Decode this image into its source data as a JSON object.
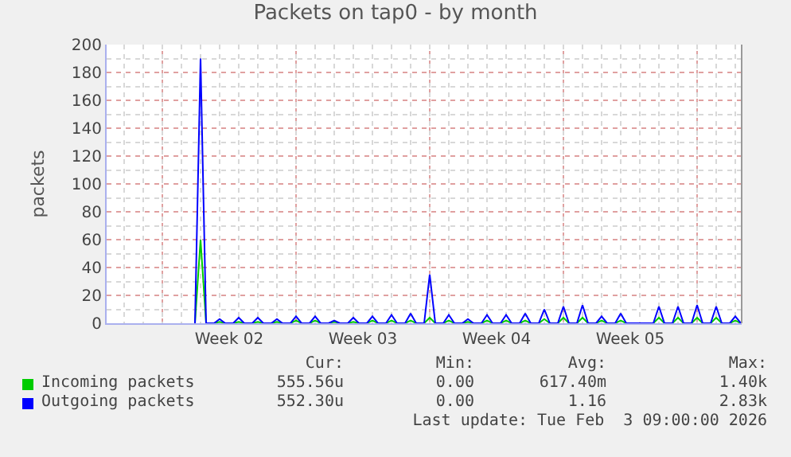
{
  "chart_data": {
    "type": "line",
    "title": "Packets on tap0 - by month",
    "ylabel": "packets",
    "x": [
      "2026-01-06T17:00",
      "2026-01-07T00:00",
      "2026-01-07T07:00",
      "2026-01-07T17:00",
      "2026-01-08T00:00",
      "2026-01-08T07:00",
      "2026-01-08T17:00",
      "2026-01-09T00:00",
      "2026-01-09T07:00",
      "2026-01-09T17:00",
      "2026-01-10T00:00",
      "2026-01-10T07:00",
      "2026-01-10T17:00",
      "2026-01-11T00:00",
      "2026-01-11T07:00",
      "2026-01-11T17:00",
      "2026-01-12T00:00",
      "2026-01-12T07:00",
      "2026-01-12T17:00",
      "2026-01-13T00:00",
      "2026-01-13T07:00",
      "2026-01-13T17:00",
      "2026-01-14T00:00",
      "2026-01-14T07:00",
      "2026-01-14T17:00",
      "2026-01-15T00:00",
      "2026-01-15T07:00",
      "2026-01-15T17:00",
      "2026-01-16T00:00",
      "2026-01-16T07:00",
      "2026-01-16T17:00",
      "2026-01-17T00:00",
      "2026-01-17T07:00",
      "2026-01-17T17:00",
      "2026-01-18T00:00",
      "2026-01-18T07:00",
      "2026-01-18T17:00",
      "2026-01-19T00:00",
      "2026-01-19T07:00",
      "2026-01-19T17:00",
      "2026-01-20T00:00",
      "2026-01-20T07:00",
      "2026-01-20T17:00",
      "2026-01-21T00:00",
      "2026-01-21T07:00",
      "2026-01-21T17:00",
      "2026-01-22T00:00",
      "2026-01-22T07:00",
      "2026-01-22T17:00",
      "2026-01-23T00:00",
      "2026-01-23T07:00",
      "2026-01-23T17:00",
      "2026-01-24T00:00",
      "2026-01-24T07:00",
      "2026-01-24T17:00",
      "2026-01-25T00:00",
      "2026-01-25T07:00",
      "2026-01-25T17:00",
      "2026-01-26T00:00",
      "2026-01-26T07:00",
      "2026-01-26T17:00",
      "2026-01-27T00:00",
      "2026-01-27T07:00",
      "2026-01-27T17:00",
      "2026-01-28T00:00",
      "2026-01-28T07:00",
      "2026-01-28T17:00",
      "2026-01-29T00:00",
      "2026-01-29T07:00",
      "2026-01-29T17:00",
      "2026-01-30T00:00",
      "2026-01-30T07:00",
      "2026-01-30T17:00",
      "2026-01-31T00:00",
      "2026-01-31T07:00",
      "2026-01-31T17:00",
      "2026-02-01T00:00",
      "2026-02-01T07:00",
      "2026-02-01T17:00",
      "2026-02-02T00:00",
      "2026-02-02T07:00",
      "2026-02-02T17:00",
      "2026-02-03T00:00",
      "2026-02-03T07:00",
      "2026-02-03T17:00",
      "2026-02-04T00:00",
      "2026-02-04T07:00"
    ],
    "series": [
      {
        "name": "Incoming packets",
        "color": "#00cc00",
        "values": [
          0,
          60,
          0,
          0,
          1,
          0,
          0,
          1,
          0,
          0,
          1,
          0,
          0,
          1,
          0,
          0,
          2,
          0,
          0,
          2,
          0,
          0,
          1,
          0,
          0,
          1,
          0,
          0,
          2,
          0,
          0,
          2,
          0,
          0,
          2,
          0,
          0,
          4,
          0,
          0,
          2,
          0,
          0,
          1,
          0,
          0,
          2,
          0,
          0,
          2,
          0,
          0,
          2,
          0,
          0,
          3,
          0,
          0,
          4,
          0,
          0,
          4,
          0,
          0,
          2,
          0,
          0,
          2,
          0,
          0,
          0,
          0,
          0,
          4,
          0,
          0,
          4,
          0,
          0,
          4,
          0,
          0,
          4,
          0,
          0,
          2,
          0
        ]
      },
      {
        "name": "Outgoing packets",
        "color": "#0000ff",
        "values": [
          0,
          190,
          0,
          0,
          3,
          0,
          0,
          4,
          0,
          0,
          4,
          0,
          0,
          3,
          0,
          0,
          5,
          0,
          0,
          5,
          0,
          0,
          2,
          0,
          0,
          4,
          0,
          0,
          5,
          0,
          0,
          6,
          0,
          0,
          7,
          0,
          0,
          35,
          0,
          0,
          6,
          0,
          0,
          3,
          0,
          0,
          6,
          0,
          0,
          6,
          0,
          0,
          7,
          0,
          0,
          10,
          0,
          0,
          12,
          0,
          0,
          13,
          0,
          0,
          5,
          0,
          0,
          7,
          0,
          0,
          0,
          0,
          0,
          12,
          0,
          0,
          12,
          0,
          0,
          13,
          0,
          0,
          12,
          0,
          0,
          5,
          0
        ]
      }
    ],
    "xlim": [
      "2026-01-02T02:00",
      "2026-02-04T08:00"
    ],
    "xticks": [
      {
        "value": "2026-01-05",
        "label": null
      },
      {
        "value": "2026-01-08T12:00",
        "label": "Week 02"
      },
      {
        "value": "2026-01-12",
        "label": null
      },
      {
        "value": "2026-01-15T12:00",
        "label": "Week 03"
      },
      {
        "value": "2026-01-19",
        "label": null
      },
      {
        "value": "2026-01-22T12:00",
        "label": "Week 04"
      },
      {
        "value": "2026-01-26",
        "label": null
      },
      {
        "value": "2026-01-29T12:00",
        "label": "Week 05"
      },
      {
        "value": "2026-02-02",
        "label": null
      }
    ],
    "ylim": [
      0,
      200
    ],
    "yticks": [
      0,
      20,
      40,
      60,
      80,
      100,
      120,
      140,
      160,
      180,
      200
    ],
    "grid": true,
    "legend": "bottom",
    "marker": "none",
    "line_style": "solid",
    "annotations": [
      "Cur:",
      "Min:",
      "Avg:",
      "Max:",
      "555.56u",
      "0.00",
      "617.40m",
      "1.40k",
      "552.30u",
      "0.00",
      "1.16",
      "2.83k",
      "Last update: Tue Feb  3 09:00:00 2026"
    ]
  }
}
